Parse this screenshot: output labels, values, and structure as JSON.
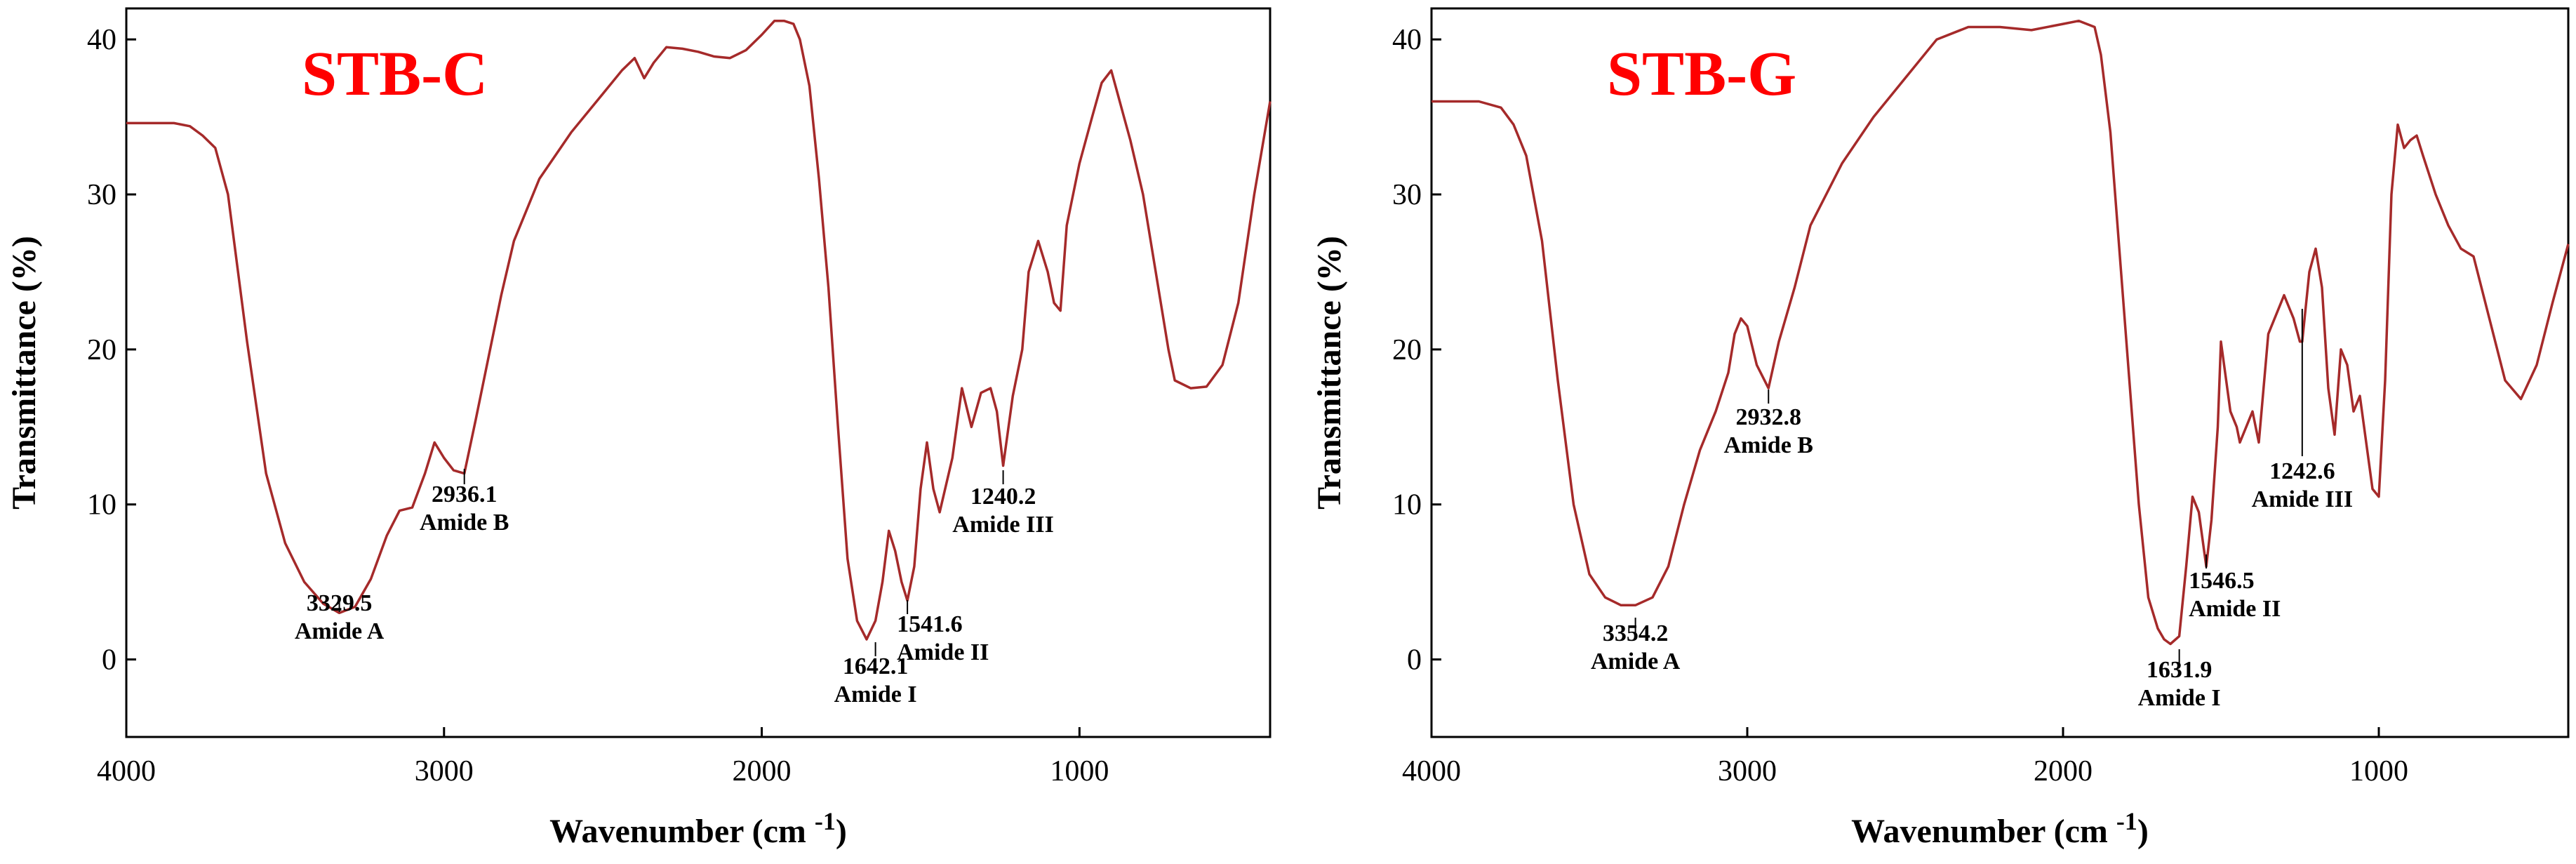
{
  "chart_data": [
    {
      "type": "line",
      "title": "STB-C",
      "xlabel": "Wavenumber (cm -1)",
      "ylabel": "Transmittance (%)",
      "xlim": [
        4000,
        400
      ],
      "ylim": [
        -5,
        42
      ],
      "x_reversed": true,
      "grid": false,
      "xticks": [
        4000,
        3000,
        2000,
        1000
      ],
      "yticks": [
        0,
        10,
        20,
        30,
        40
      ],
      "series_color": "#a52a2a",
      "title_color": "#ff0000",
      "series": [
        {
          "x": [
            4000,
            3850,
            3800,
            3760,
            3720,
            3680,
            3620,
            3560,
            3500,
            3440,
            3380,
            3329.5,
            3280,
            3230,
            3180,
            3140,
            3100,
            3060,
            3030,
            3000,
            2970,
            2936.1,
            2900,
            2860,
            2820,
            2780,
            2700,
            2600,
            2500,
            2440,
            2400,
            2370,
            2340,
            2300,
            2250,
            2200,
            2150,
            2100,
            2050,
            2000,
            1960,
            1930,
            1900,
            1880,
            1850,
            1820,
            1790,
            1760,
            1730,
            1700,
            1670,
            1642.1,
            1620,
            1600,
            1580,
            1560,
            1541.6,
            1520,
            1500,
            1480,
            1460,
            1440,
            1400,
            1370,
            1340,
            1310,
            1280,
            1260,
            1240.2,
            1210,
            1180,
            1160,
            1130,
            1100,
            1080,
            1060,
            1040,
            1000,
            960,
            930,
            900,
            880,
            860,
            840,
            800,
            760,
            720,
            700,
            650,
            600,
            550,
            500,
            450,
            400
          ],
          "values": [
            34.6,
            34.6,
            34.4,
            33.8,
            33.0,
            30.0,
            20.5,
            12.0,
            7.5,
            5.0,
            3.6,
            3.0,
            3.4,
            5.2,
            8.0,
            9.6,
            9.8,
            12.0,
            14.0,
            13.0,
            12.2,
            12.0,
            15.5,
            19.5,
            23.5,
            27.0,
            31.0,
            34.0,
            36.5,
            38.0,
            38.8,
            37.5,
            38.5,
            39.5,
            39.4,
            39.2,
            38.9,
            38.8,
            39.3,
            40.3,
            41.2,
            41.2,
            41.0,
            40.0,
            37.0,
            31.0,
            24.0,
            15.0,
            6.5,
            2.5,
            1.3,
            2.5,
            5.0,
            8.3,
            7.0,
            5.0,
            3.8,
            6.0,
            11.0,
            14.0,
            11.0,
            9.5,
            13.0,
            17.5,
            15.0,
            17.2,
            17.5,
            16.0,
            12.5,
            17.0,
            20.0,
            25.0,
            27.0,
            25.0,
            23.0,
            22.5,
            28.0,
            32.0,
            35.0,
            37.2,
            38.0,
            36.5,
            35.0,
            33.5,
            30.0,
            25.0,
            20.0,
            18.0,
            17.5,
            17.6,
            19.0,
            23.0,
            30.0,
            36.0
          ]
        }
      ],
      "annotations": [
        {
          "value": "3329.5",
          "label": "Amide A"
        },
        {
          "value": "2936.1",
          "label": "Amide B"
        },
        {
          "value": "1642.1",
          "label": "Amide I"
        },
        {
          "value": "1541.6",
          "label": "Amide II"
        },
        {
          "value": "1240.2",
          "label": "Amide III"
        }
      ]
    },
    {
      "type": "line",
      "title": "STB-G",
      "xlabel": "Wavenumber (cm -1)",
      "ylabel": "Transmittance (%)",
      "xlim": [
        4000,
        400
      ],
      "ylim": [
        -5,
        42
      ],
      "x_reversed": true,
      "grid": false,
      "xticks": [
        4000,
        3000,
        2000,
        1000
      ],
      "yticks": [
        0,
        10,
        20,
        30,
        40
      ],
      "series_color": "#a52a2a",
      "title_color": "#ff0000",
      "series": [
        {
          "x": [
            4000,
            3850,
            3780,
            3740,
            3700,
            3650,
            3600,
            3550,
            3500,
            3450,
            3400,
            3354.2,
            3300,
            3250,
            3200,
            3150,
            3100,
            3060,
            3040,
            3020,
            3000,
            2970,
            2932.8,
            2900,
            2850,
            2800,
            2700,
            2600,
            2500,
            2400,
            2300,
            2200,
            2100,
            2000,
            1950,
            1900,
            1880,
            1850,
            1820,
            1790,
            1760,
            1730,
            1700,
            1680,
            1660,
            1631.9,
            1610,
            1590,
            1570,
            1546.5,
            1530,
            1510,
            1500,
            1490,
            1470,
            1450,
            1440,
            1420,
            1400,
            1380,
            1350,
            1300,
            1270,
            1250,
            1242.6,
            1220,
            1200,
            1180,
            1160,
            1140,
            1120,
            1100,
            1080,
            1060,
            1040,
            1020,
            1000,
            980,
            960,
            940,
            920,
            900,
            880,
            860,
            820,
            780,
            740,
            700,
            650,
            600,
            550,
            500,
            450,
            400
          ],
          "values": [
            36.0,
            36.0,
            35.6,
            34.5,
            32.5,
            27.0,
            18.0,
            10.0,
            5.5,
            4.0,
            3.5,
            3.5,
            4.0,
            6.0,
            10.0,
            13.5,
            16.0,
            18.5,
            21.0,
            22.0,
            21.5,
            19.0,
            17.5,
            20.5,
            24.0,
            28.0,
            32.0,
            35.0,
            37.5,
            40.0,
            40.8,
            40.8,
            40.6,
            41.0,
            41.2,
            40.8,
            39.0,
            34.0,
            26.0,
            18.0,
            10.0,
            4.0,
            2.0,
            1.3,
            1.0,
            1.5,
            6.0,
            10.5,
            9.5,
            6.0,
            9.0,
            15.0,
            20.5,
            19.0,
            16.0,
            15.0,
            14.0,
            15.0,
            16.0,
            14.0,
            21.0,
            23.5,
            22.0,
            20.5,
            20.5,
            25.0,
            26.5,
            24.0,
            17.5,
            14.5,
            20.0,
            19.0,
            16.0,
            17.0,
            14.0,
            11.0,
            10.5,
            18.0,
            30.0,
            34.5,
            33.0,
            33.5,
            33.8,
            32.5,
            30.0,
            28.0,
            26.5,
            26.0,
            22.0,
            18.0,
            16.8,
            19.0,
            23.0,
            26.8
          ]
        }
      ],
      "annotations": [
        {
          "value": "3354.2",
          "label": "Amide A"
        },
        {
          "value": "2932.8",
          "label": "Amide B"
        },
        {
          "value": "1631.9",
          "label": "Amide I"
        },
        {
          "value": "1546.5",
          "label": "Amide II"
        },
        {
          "value": "1242.6",
          "label": "Amide III"
        }
      ]
    }
  ]
}
